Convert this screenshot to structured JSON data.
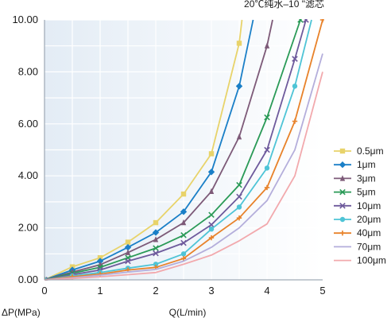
{
  "chart_data": {
    "type": "line",
    "title": "20℃纯水–10 \"滤芯",
    "xlabel": "Q(L/min)",
    "ylabel": "ΔP(MPa)",
    "xlim": [
      0,
      5
    ],
    "ylim": [
      0,
      10
    ],
    "x_ticks": [
      "0",
      "1",
      "2",
      "3",
      "4",
      "5"
    ],
    "y_ticks": [
      "0.00",
      "2.00",
      "4.00",
      "6.00",
      "8.00",
      "10.00"
    ],
    "grid": true,
    "legend_position": "right",
    "series": [
      {
        "name": "0.5μm",
        "color": "#e8d36a",
        "marker": "square",
        "points": [
          [
            0,
            0
          ],
          [
            0.5,
            0.5
          ],
          [
            1,
            0.85
          ],
          [
            1.5,
            1.45
          ],
          [
            2,
            2.2
          ],
          [
            2.5,
            3.3
          ],
          [
            3,
            4.85
          ],
          [
            3.5,
            9.1
          ],
          [
            3.55,
            10
          ]
        ]
      },
      {
        "name": "1μm",
        "color": "#1a7fc7",
        "marker": "diamond",
        "points": [
          [
            0,
            0
          ],
          [
            0.5,
            0.38
          ],
          [
            1,
            0.72
          ],
          [
            1.5,
            1.25
          ],
          [
            2,
            1.82
          ],
          [
            2.5,
            2.62
          ],
          [
            3,
            4.15
          ],
          [
            3.5,
            7.45
          ],
          [
            3.75,
            10
          ]
        ]
      },
      {
        "name": "3μm",
        "color": "#7d5a78",
        "marker": "triangle",
        "points": [
          [
            0,
            0
          ],
          [
            0.5,
            0.3
          ],
          [
            1,
            0.58
          ],
          [
            1.5,
            1.05
          ],
          [
            2,
            1.55
          ],
          [
            2.5,
            2.2
          ],
          [
            3,
            3.4
          ],
          [
            3.5,
            5.5
          ],
          [
            4,
            9
          ],
          [
            4.1,
            10
          ]
        ]
      },
      {
        "name": "5μm",
        "color": "#2a9a57",
        "marker": "x",
        "points": [
          [
            0,
            0
          ],
          [
            0.5,
            0.25
          ],
          [
            1,
            0.48
          ],
          [
            1.5,
            0.85
          ],
          [
            2,
            1.22
          ],
          [
            2.5,
            1.72
          ],
          [
            3,
            2.5
          ],
          [
            3.5,
            3.65
          ],
          [
            4,
            6.25
          ],
          [
            4.6,
            10
          ]
        ]
      },
      {
        "name": "10μm",
        "color": "#6e5a9c",
        "marker": "x",
        "points": [
          [
            0,
            0
          ],
          [
            0.5,
            0.2
          ],
          [
            1,
            0.38
          ],
          [
            1.5,
            0.72
          ],
          [
            2,
            1.02
          ],
          [
            2.5,
            1.42
          ],
          [
            3,
            2.12
          ],
          [
            3.5,
            3.2
          ],
          [
            4,
            5.0
          ],
          [
            4.5,
            8.5
          ],
          [
            4.7,
            10
          ]
        ]
      },
      {
        "name": "20μm",
        "color": "#4ec4d6",
        "marker": "circle",
        "points": [
          [
            0,
            0
          ],
          [
            0.5,
            0.15
          ],
          [
            1,
            0.28
          ],
          [
            1.5,
            0.45
          ],
          [
            2,
            0.6
          ],
          [
            2.5,
            1.0
          ],
          [
            3,
            1.95
          ],
          [
            3.5,
            2.8
          ],
          [
            4,
            4.3
          ],
          [
            4.5,
            7.45
          ],
          [
            4.8,
            10
          ]
        ]
      },
      {
        "name": "40μm",
        "color": "#e8822a",
        "marker": "plus",
        "points": [
          [
            0,
            0
          ],
          [
            0.5,
            0.12
          ],
          [
            1,
            0.22
          ],
          [
            1.5,
            0.38
          ],
          [
            2,
            0.48
          ],
          [
            2.5,
            0.82
          ],
          [
            3,
            1.62
          ],
          [
            3.5,
            2.38
          ],
          [
            4,
            3.55
          ],
          [
            4.5,
            6.1
          ],
          [
            5,
            10
          ]
        ]
      },
      {
        "name": "70μm",
        "color": "#b4aedb",
        "marker": "none",
        "points": [
          [
            0,
            0
          ],
          [
            0.5,
            0.08
          ],
          [
            1,
            0.18
          ],
          [
            1.5,
            0.3
          ],
          [
            2,
            0.4
          ],
          [
            2.5,
            0.72
          ],
          [
            3,
            1.25
          ],
          [
            3.5,
            2.0
          ],
          [
            4,
            3.05
          ],
          [
            4.5,
            5.0
          ],
          [
            5,
            8.7
          ]
        ]
      },
      {
        "name": "100μm",
        "color": "#f2a9ad",
        "marker": "none",
        "points": [
          [
            0,
            0
          ],
          [
            0.5,
            0.05
          ],
          [
            1,
            0.12
          ],
          [
            1.5,
            0.2
          ],
          [
            2,
            0.28
          ],
          [
            2.5,
            0.6
          ],
          [
            3,
            0.95
          ],
          [
            3.5,
            1.5
          ],
          [
            4,
            2.15
          ],
          [
            4.5,
            4.0
          ],
          [
            5,
            8.0
          ]
        ]
      }
    ]
  }
}
